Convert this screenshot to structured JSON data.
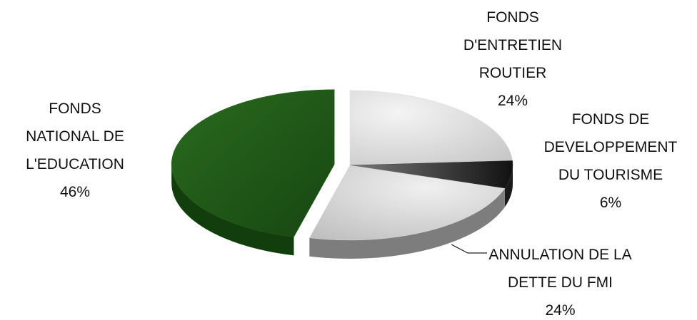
{
  "chart_data": {
    "type": "pie",
    "categories": [
      "FONDS D'ENTRETIEN ROUTIER",
      "FONDS DE DEVELOPPEMENT DU TOURISME",
      "ANNULATION DE LA DETTE DU FMI",
      "FONDS NATIONAL DE L'EDUCATION"
    ],
    "values": [
      24,
      6,
      24,
      46
    ],
    "value_labels": [
      "24%",
      "6%",
      "24%",
      "46%"
    ],
    "colors": [
      "#dcdcdc",
      "#3a3a3a",
      "#d6d6d6",
      "#1f5a16"
    ],
    "exploded": [
      false,
      false,
      false,
      true
    ]
  }
}
